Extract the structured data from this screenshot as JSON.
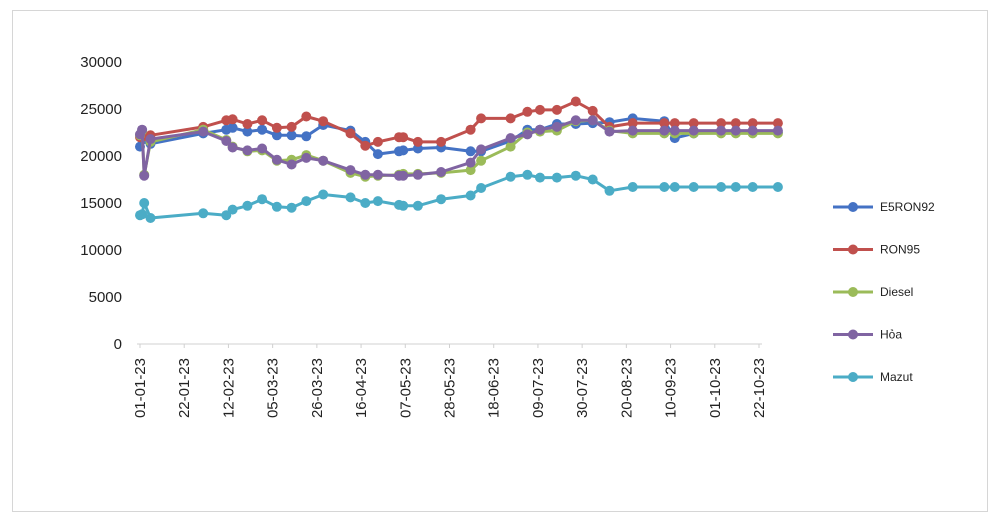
{
  "chart_data": {
    "type": "line",
    "title": "",
    "xlabel": "",
    "ylabel": "",
    "ylim": [
      0,
      30000
    ],
    "yticks": [
      0,
      5000,
      10000,
      15000,
      20000,
      25000,
      30000
    ],
    "ytick_labels": [
      "0",
      "5000",
      "10000",
      "15000",
      "20000",
      "25000",
      "30000"
    ],
    "xlim": [
      "2023-01-01",
      "2023-10-22"
    ],
    "xtick_labels": [
      "01-01-23",
      "22-01-23",
      "12-02-23",
      "05-03-23",
      "26-03-23",
      "16-04-23",
      "07-05-23",
      "28-05-23",
      "18-06-23",
      "09-07-23",
      "30-07-23",
      "20-08-23",
      "10-09-23",
      "01-10-23",
      "22-10-23"
    ],
    "xtick_dates": [
      "2023-01-01",
      "2023-01-22",
      "2023-02-12",
      "2023-03-05",
      "2023-03-26",
      "2023-04-16",
      "2023-05-07",
      "2023-05-28",
      "2023-06-18",
      "2023-07-09",
      "2023-07-30",
      "2023-08-20",
      "2023-09-10",
      "2023-10-01",
      "2023-10-22"
    ],
    "x": [
      "2023-01-01",
      "2023-01-02",
      "2023-01-03",
      "2023-01-06",
      "2023-01-31",
      "2023-02-11",
      "2023-02-14",
      "2023-02-21",
      "2023-02-28",
      "2023-03-07",
      "2023-03-14",
      "2023-03-21",
      "2023-03-29",
      "2023-04-11",
      "2023-04-18",
      "2023-04-24",
      "2023-05-04",
      "2023-05-06",
      "2023-05-13",
      "2023-05-24",
      "2023-06-07",
      "2023-06-12",
      "2023-06-26",
      "2023-07-04",
      "2023-07-10",
      "2023-07-18",
      "2023-07-27",
      "2023-08-04",
      "2023-08-12",
      "2023-08-23",
      "2023-09-07",
      "2023-09-12",
      "2023-09-21",
      "2023-10-04",
      "2023-10-11",
      "2023-10-19",
      "2023-10-31"
    ],
    "grid": false,
    "legend_position": "right",
    "series": [
      {
        "name": "E5RON92",
        "color": "#4472c4",
        "values": [
          21000,
          22000,
          21800,
          21300,
          22400,
          22800,
          23000,
          22600,
          22800,
          22200,
          22200,
          22100,
          23300,
          22700,
          21500,
          20200,
          20500,
          20600,
          20800,
          20900,
          20500,
          20500,
          21600,
          22800,
          22800,
          23400,
          23400,
          23500,
          23600,
          24000,
          23700,
          21900,
          22400,
          22500,
          22500,
          22600,
          22500
        ]
      },
      {
        "name": "RON95",
        "color": "#c0504d",
        "values": [
          22000,
          22200,
          22100,
          22200,
          23100,
          23800,
          23900,
          23400,
          23800,
          23000,
          23100,
          24200,
          23700,
          22400,
          21100,
          21500,
          22000,
          22000,
          21500,
          21500,
          22800,
          24000,
          24000,
          24700,
          24900,
          24900,
          25800,
          24800,
          23100,
          23500,
          23500,
          23500,
          23500,
          23500,
          23500,
          23500,
          23500
        ]
      },
      {
        "name": "Diesel",
        "color": "#9bbb59",
        "values": [
          22200,
          22700,
          18000,
          21500,
          22800,
          21700,
          21000,
          20500,
          20600,
          19500,
          19600,
          20100,
          19500,
          18200,
          17800,
          17900,
          18000,
          18100,
          18100,
          18200,
          18500,
          19500,
          21000,
          22500,
          22600,
          22700,
          23700,
          23800,
          22700,
          22400,
          22400,
          22400,
          22400,
          22400,
          22400,
          22400,
          22400
        ]
      },
      {
        "name": "Hỏa",
        "color": "#8064a2",
        "values": [
          22300,
          22800,
          17900,
          21800,
          22600,
          21600,
          20900,
          20600,
          20800,
          19600,
          19100,
          19800,
          19500,
          18500,
          18000,
          18000,
          17900,
          17900,
          18000,
          18300,
          19300,
          20700,
          21900,
          22300,
          22800,
          23100,
          23800,
          23800,
          22600,
          22700,
          22700,
          22700,
          22700,
          22700,
          22700,
          22700,
          22700
        ]
      },
      {
        "name": "Mazut",
        "color": "#4bacc6",
        "values": [
          13700,
          13800,
          15000,
          13400,
          13900,
          13700,
          14300,
          14700,
          15400,
          14600,
          14500,
          15200,
          15900,
          15600,
          15000,
          15200,
          14800,
          14700,
          14700,
          15400,
          15800,
          16600,
          17800,
          18000,
          17700,
          17700,
          17900,
          17500,
          16300,
          16700,
          16700,
          16700,
          16700,
          16700,
          16700,
          16700,
          16700
        ]
      }
    ]
  }
}
